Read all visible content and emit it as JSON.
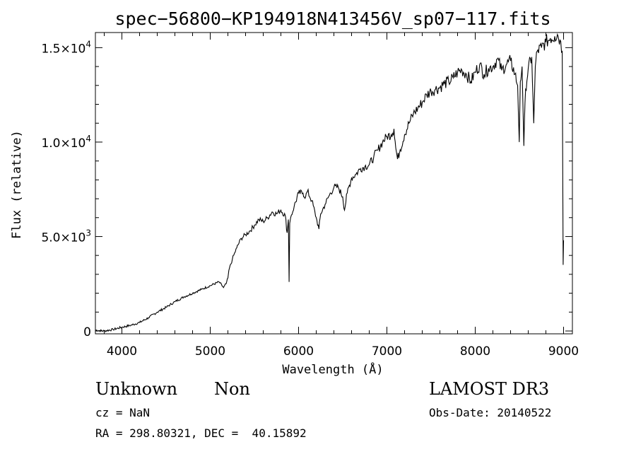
{
  "chart_data": {
    "type": "line",
    "title": "spec−56800−KP194918N413456V_sp07−117.fits",
    "xlabel": "Wavelength (Å)",
    "ylabel": "Flux (relative)",
    "xlim": [
      3700,
      9100
    ],
    "ylim": [
      -150,
      15800
    ],
    "xticks": [
      4000,
      5000,
      6000,
      7000,
      8000,
      9000
    ],
    "xtick_labels": [
      "4000",
      "5000",
      "6000",
      "7000",
      "8000",
      "9000"
    ],
    "yticks": [
      0,
      5000,
      10000,
      15000
    ],
    "ytick_labels": [
      {
        "mant": "0",
        "exp": ""
      },
      {
        "mant": "5.0×10",
        "exp": "3"
      },
      {
        "mant": "1.0×10",
        "exp": "4"
      },
      {
        "mant": "1.5×10",
        "exp": "4"
      }
    ],
    "grid": false,
    "series": [
      {
        "x": [
          3700,
          3800,
          3900,
          4000,
          4100,
          4200,
          4300,
          4400,
          4500,
          4600,
          4700,
          4800,
          4900,
          5000,
          5100,
          5150,
          5180,
          5200,
          5210,
          5250,
          5300,
          5350,
          5400,
          5450,
          5500,
          5550,
          5600,
          5650,
          5700,
          5750,
          5800,
          5850,
          5870,
          5885,
          5893,
          5900,
          5910,
          5950,
          6000,
          6050,
          6080,
          6100,
          6150,
          6200,
          6230,
          6250,
          6300,
          6350,
          6400,
          6450,
          6500,
          6520,
          6550,
          6600,
          6650,
          6700,
          6750,
          6800,
          6850,
          6900,
          6950,
          7000,
          7050,
          7080,
          7100,
          7120,
          7150,
          7200,
          7250,
          7300,
          7350,
          7400,
          7450,
          7500,
          7550,
          7600,
          7650,
          7700,
          7750,
          7800,
          7850,
          7900,
          7950,
          8000,
          8050,
          8100,
          8150,
          8200,
          8250,
          8300,
          8350,
          8400,
          8450,
          8480,
          8498,
          8510,
          8530,
          8542,
          8550,
          8570,
          8600,
          8640,
          8662,
          8680,
          8700,
          8750,
          8800,
          8850,
          8900,
          8930,
          8960,
          8985,
          8995,
          9000
        ],
        "y": [
          50,
          0,
          80,
          200,
          300,
          450,
          700,
          1000,
          1250,
          1550,
          1800,
          2000,
          2200,
          2400,
          2600,
          2300,
          2500,
          2800,
          3200,
          3800,
          4400,
          4900,
          5100,
          5300,
          5600,
          5900,
          5800,
          6000,
          6300,
          6200,
          6400,
          6100,
          5200,
          5900,
          2600,
          5700,
          6000,
          6600,
          7300,
          7300,
          7100,
          7400,
          6900,
          6000,
          5400,
          6200,
          6700,
          7200,
          7600,
          7600,
          7100,
          6400,
          7300,
          8100,
          8300,
          8600,
          8700,
          8800,
          9200,
          9600,
          10000,
          10300,
          10400,
          10700,
          9700,
          9100,
          9600,
          10400,
          11000,
          11500,
          11800,
          12100,
          12500,
          12700,
          12800,
          12900,
          13100,
          13200,
          13400,
          13700,
          13800,
          13600,
          13200,
          13700,
          14100,
          13600,
          13900,
          14000,
          14400,
          13800,
          14100,
          14300,
          13600,
          13000,
          10000,
          13200,
          14000,
          11500,
          9800,
          12800,
          13900,
          14500,
          11000,
          14000,
          14800,
          15000,
          15300,
          15500,
          15600,
          15700,
          15400,
          14800,
          3500,
          4800
        ]
      }
    ]
  },
  "info": {
    "class_name": "Unknown",
    "subclass": "Non",
    "survey": "LAMOST DR3",
    "cz_text": "cz = NaN",
    "obs_date_text": "Obs-Date: 20140522",
    "coords_text": "RA = 298.80321, DEC =  40.15892"
  }
}
